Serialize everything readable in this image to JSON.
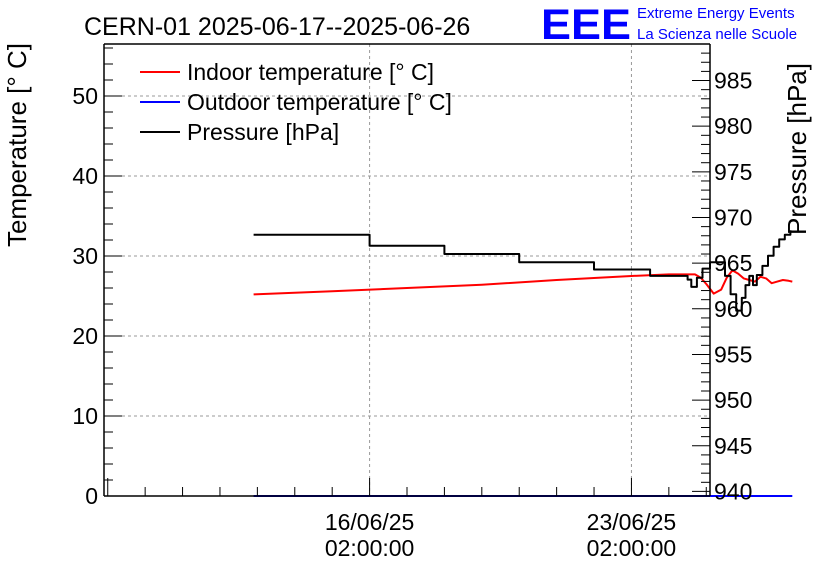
{
  "header": {
    "title": "CERN-01 2025-06-17--2025-06-26",
    "logo_text": "EEE",
    "org_line1": "Extreme Energy Events",
    "org_line2": "La Scienza nelle Scuole"
  },
  "colors": {
    "indoor": "#ff0000",
    "outdoor": "#0000ff",
    "pressure": "#000000",
    "logo": "#0000ff",
    "grid": "#999999"
  },
  "chart_data": {
    "type": "line",
    "title": "CERN-01 2025-06-17--2025-06-26",
    "ylabel_left": "Temperature [° C]",
    "ylabel_right": "Pressure [hPa]",
    "ylim_left": [
      0,
      56.5
    ],
    "ylim_right": [
      939.5,
      989.0
    ],
    "xlim_days": [
      -7.1,
      9.1
    ],
    "x_unit": "days since 16/06/25 02:00:00",
    "grid": true,
    "legend_position": "top-left",
    "left_ticks": [
      0,
      10,
      20,
      30,
      40,
      50
    ],
    "right_ticks": [
      940,
      945,
      950,
      955,
      960,
      965,
      970,
      975,
      980,
      985
    ],
    "x_ticks": [
      {
        "day": 0,
        "date": "16/06/25",
        "time": "02:00:00"
      },
      {
        "day": 7,
        "date": "23/06/25",
        "time": "02:00:00"
      }
    ],
    "series": [
      {
        "name": "Indoor temperature [° C]",
        "axis": "left",
        "step": false,
        "points": [
          [
            -3.1,
            25.2
          ],
          [
            -1,
            25.6
          ],
          [
            1,
            26
          ],
          [
            3,
            26.4
          ],
          [
            5,
            27
          ],
          [
            7,
            27.5
          ],
          [
            8,
            27.7
          ],
          [
            8.7,
            27.7
          ],
          [
            8.85,
            27.3
          ],
          [
            9.0,
            26.5
          ],
          [
            9.2,
            25.3
          ],
          [
            9.4,
            25.8
          ],
          [
            9.55,
            27.3
          ],
          [
            9.7,
            28.2
          ],
          [
            9.85,
            27.8
          ],
          [
            10.0,
            27.2
          ],
          [
            10.15,
            27.0
          ],
          [
            10.3,
            26.8
          ],
          [
            10.45,
            27.4
          ],
          [
            10.6,
            27.2
          ],
          [
            10.75,
            26.6
          ],
          [
            10.9,
            26.8
          ],
          [
            11.05,
            27.0
          ],
          [
            11.2,
            26.9
          ],
          [
            11.3,
            26.8
          ]
        ]
      },
      {
        "name": "Outdoor temperature [° C]",
        "axis": "left",
        "step": false,
        "points": [
          [
            -3.1,
            0
          ],
          [
            11.3,
            0
          ]
        ]
      },
      {
        "name": "Pressure [hPa]",
        "axis": "right",
        "step": true,
        "points": [
          [
            -3.1,
            968.1
          ],
          [
            0,
            966.9
          ],
          [
            2,
            966.0
          ],
          [
            4,
            965.1
          ],
          [
            6,
            964.3
          ],
          [
            7.5,
            963.6
          ],
          [
            8.5,
            963.2
          ],
          [
            8.6,
            962.4
          ],
          [
            8.75,
            963.4
          ],
          [
            8.9,
            964.4
          ],
          [
            9.1,
            965.1
          ],
          [
            9.35,
            965.1
          ],
          [
            9.5,
            963.6
          ],
          [
            9.65,
            961.6
          ],
          [
            9.8,
            959.8
          ],
          [
            9.95,
            961.2
          ],
          [
            10.05,
            962.6
          ],
          [
            10.15,
            963.6
          ],
          [
            10.25,
            962.6
          ],
          [
            10.35,
            963.7
          ],
          [
            10.5,
            964.7
          ],
          [
            10.65,
            965.8
          ],
          [
            10.8,
            966.8
          ],
          [
            10.95,
            967.6
          ],
          [
            11.1,
            968.1
          ],
          [
            11.25,
            968.6
          ]
        ]
      }
    ]
  }
}
